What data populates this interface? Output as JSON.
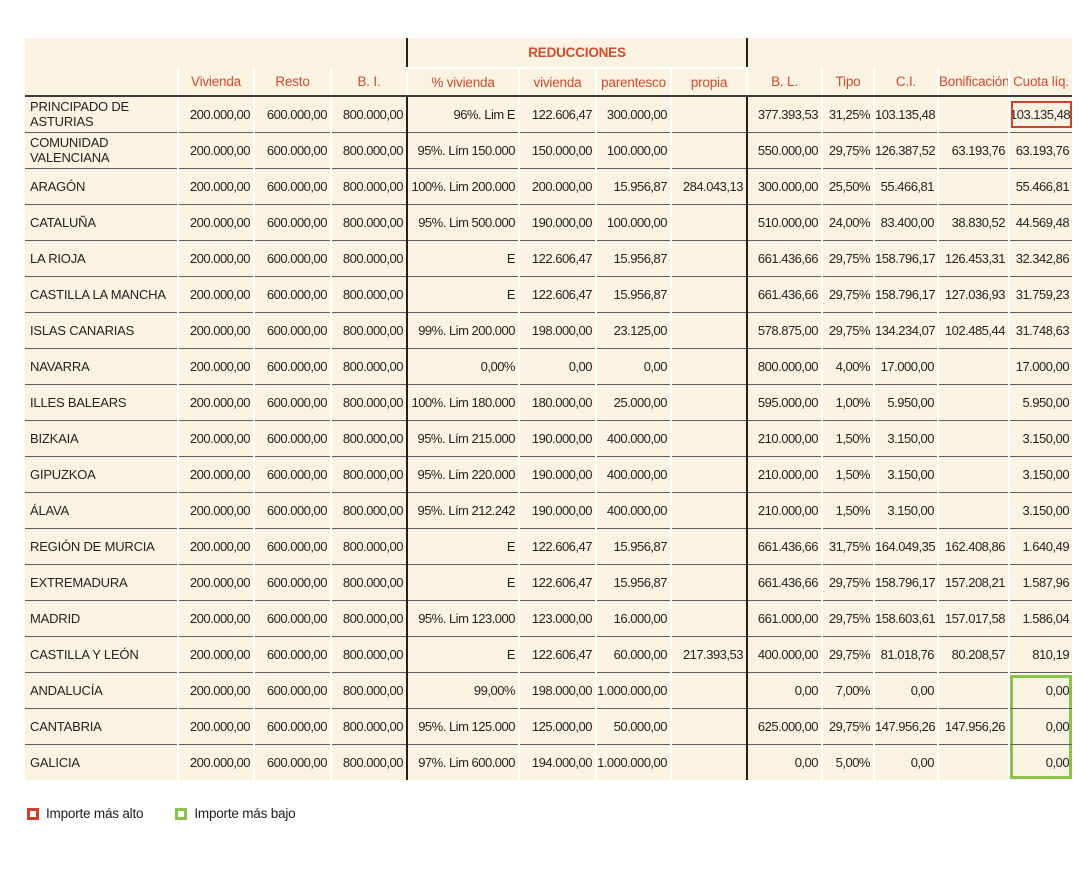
{
  "header": {
    "group_label": "REDUCCIONES",
    "columns": [
      "",
      "Vivienda",
      "Resto",
      "B. I.",
      "% vivienda",
      "vivienda",
      "parentesco",
      "propia",
      "B. L.",
      "Tipo",
      "C.I.",
      "Bonificación",
      "Cuota líq."
    ]
  },
  "rows": [
    {
      "region": "PRINCIPADO DE ASTURIAS",
      "cells": [
        "200.000,00",
        "600.000,00",
        "800.000,00",
        "96%. Lim E",
        "122.606,47",
        "300.000,00",
        "",
        "377.393,53",
        "31,25%",
        "103.135,48",
        "",
        "103.135,48"
      ],
      "highlight": "highest"
    },
    {
      "region": "COMUNIDAD VALENCIANA",
      "cells": [
        "200.000,00",
        "600.000,00",
        "800.000,00",
        "95%. Lím 150.000",
        "150.000,00",
        "100.000,00",
        "",
        "550.000,00",
        "29,75%",
        "126.387,52",
        "63.193,76",
        "63.193,76"
      ]
    },
    {
      "region": "ARAGÓN",
      "cells": [
        "200.000,00",
        "600.000,00",
        "800.000,00",
        "100%. Lim 200.000",
        "200.000,00",
        "15.956,87",
        "284.043,13",
        "300.000,00",
        "25,50%",
        "55.466,81",
        "",
        "55.466,81"
      ]
    },
    {
      "region": "CATALUÑA",
      "cells": [
        "200.000,00",
        "600.000,00",
        "800.000,00",
        "95%. Lim 500.000",
        "190.000,00",
        "100.000,00",
        "",
        "510.000,00",
        "24,00%",
        "83.400,00",
        "38.830,52",
        "44.569,48"
      ]
    },
    {
      "region": "LA RIOJA",
      "cells": [
        "200.000,00",
        "600.000,00",
        "800.000,00",
        "E",
        "122.606,47",
        "15.956,87",
        "",
        "661.436,66",
        "29,75%",
        "158.796,17",
        "126.453,31",
        "32.342,86"
      ]
    },
    {
      "region": "CASTILLA LA MANCHA",
      "cells": [
        "200.000,00",
        "600.000,00",
        "800.000,00",
        "E",
        "122.606,47",
        "15.956,87",
        "",
        "661.436,66",
        "29,75%",
        "158.796,17",
        "127.036,93",
        "31.759,23"
      ]
    },
    {
      "region": "ISLAS CANARIAS",
      "cells": [
        "200.000,00",
        "600.000,00",
        "800.000,00",
        "99%. Lim 200.000",
        "198.000,00",
        "23.125,00",
        "",
        "578.875,00",
        "29,75%",
        "134.234,07",
        "102.485,44",
        "31.748,63"
      ]
    },
    {
      "region": "NAVARRA",
      "cells": [
        "200.000,00",
        "600.000,00",
        "800.000,00",
        "0,00%",
        "0,00",
        "0,00",
        "",
        "800.000,00",
        "4,00%",
        "17.000,00",
        "",
        "17.000,00"
      ]
    },
    {
      "region": "ILLES BALEARS",
      "cells": [
        "200.000,00",
        "600.000,00",
        "800.000,00",
        "100%. Lim 180.000",
        "180.000,00",
        "25.000,00",
        "",
        "595.000,00",
        "1,00%",
        "5.950,00",
        "",
        "5.950,00"
      ]
    },
    {
      "region": "BIZKAIA",
      "cells": [
        "200.000,00",
        "600.000,00",
        "800.000,00",
        "95%. Lím 215.000",
        "190.000,00",
        "400.000,00",
        "",
        "210.000,00",
        "1,50%",
        "3.150,00",
        "",
        "3.150,00"
      ]
    },
    {
      "region": "GIPUZKOA",
      "cells": [
        "200.000,00",
        "600.000,00",
        "800.000,00",
        "95%. Lím 220.000",
        "190.000,00",
        "400.000,00",
        "",
        "210.000,00",
        "1,50%",
        "3.150,00",
        "",
        "3.150,00"
      ]
    },
    {
      "region": "ÁLAVA",
      "cells": [
        "200.000,00",
        "600.000,00",
        "800.000,00",
        "95%. Lím 212.242",
        "190.000,00",
        "400.000,00",
        "",
        "210.000,00",
        "1,50%",
        "3.150,00",
        "",
        "3.150,00"
      ]
    },
    {
      "region": "REGIÓN DE MURCIA",
      "cells": [
        "200.000,00",
        "600.000,00",
        "800.000,00",
        "E",
        "122.606,47",
        "15.956,87",
        "",
        "661.436,66",
        "31,75%",
        "164.049,35",
        "162.408,86",
        "1.640,49"
      ]
    },
    {
      "region": "EXTREMADURA",
      "cells": [
        "200.000,00",
        "600.000,00",
        "800.000,00",
        "E",
        "122.606,47",
        "15.956,87",
        "",
        "661.436,66",
        "29,75%",
        "158.796,17",
        "157.208,21",
        "1.587,96"
      ]
    },
    {
      "region": "MADRID",
      "cells": [
        "200.000,00",
        "600.000,00",
        "800.000,00",
        "95%. Lim 123.000",
        "123.000,00",
        "16.000,00",
        "",
        "661.000,00",
        "29,75%",
        "158.603,61",
        "157.017,58",
        "1.586,04"
      ]
    },
    {
      "region": "CASTILLA Y LEÓN",
      "cells": [
        "200.000,00",
        "600.000,00",
        "800.000,00",
        "E",
        "122.606,47",
        "60.000,00",
        "217.393,53",
        "400.000,00",
        "29,75%",
        "81.018,76",
        "80.208,57",
        "810,19"
      ]
    },
    {
      "region": "ANDALUCÍA",
      "cells": [
        "200.000,00",
        "600.000,00",
        "800.000,00",
        "99,00%",
        "198.000,00",
        "1.000.000,00",
        "",
        "0,00",
        "7,00%",
        "0,00",
        "",
        "0,00"
      ],
      "highlight": "lowest"
    },
    {
      "region": "CANTABRIA",
      "cells": [
        "200.000,00",
        "600.000,00",
        "800.000,00",
        "95%. Lim 125.000",
        "125.000,00",
        "50.000,00",
        "",
        "625.000,00",
        "29,75%",
        "147.956,26",
        "147.956,26",
        "0,00"
      ],
      "highlight": "lowest"
    },
    {
      "region": "GALICIA",
      "cells": [
        "200.000,00",
        "600.000,00",
        "800.000,00",
        "97%. Lim 600.000",
        "194.000,00",
        "1.000.000,00",
        "",
        "0,00",
        "5,00%",
        "0,00",
        "",
        "0,00"
      ],
      "highlight": "lowest"
    }
  ],
  "legend": {
    "high_label": "Importe más alto",
    "low_label": "Importe más bajo"
  },
  "colors": {
    "table_background": "#faf3e1",
    "header_text": "#d14a2c",
    "highest_box": "#cf402a",
    "lowest_box": "#8dc14f"
  }
}
